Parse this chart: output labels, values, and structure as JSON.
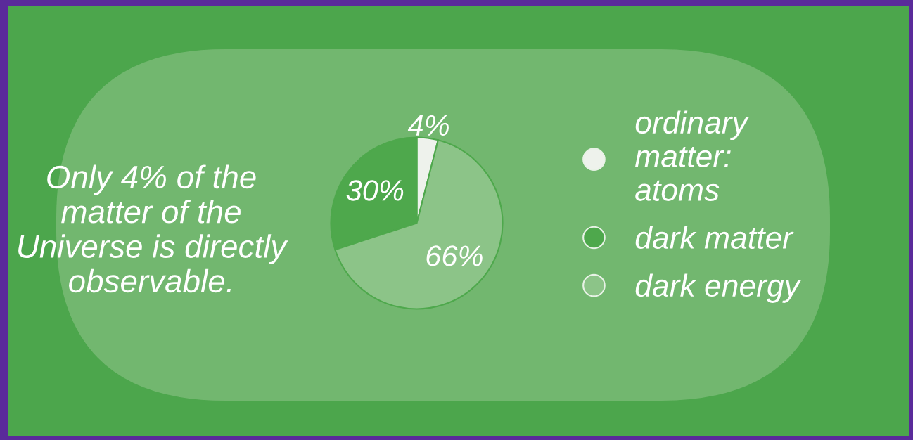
{
  "chart_data": {
    "type": "pie",
    "categories": [
      "ordinary matter: atoms",
      "dark matter",
      "dark energy"
    ],
    "values": [
      4,
      30,
      66
    ],
    "colors": [
      "#eef2ec",
      "#4ea84c",
      "#8cc488"
    ],
    "value_labels": [
      "4%",
      "30%",
      "66%"
    ],
    "annotations": [
      "Only 4% of the matter of the Universe is directly observable."
    ],
    "legend": "right"
  }
}
